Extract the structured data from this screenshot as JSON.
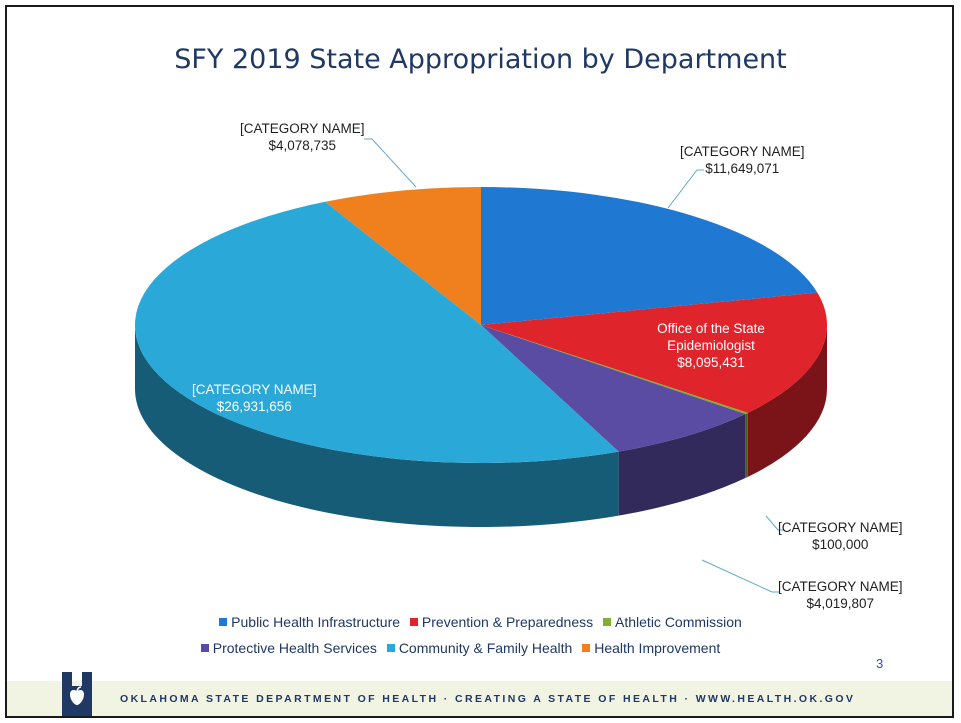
{
  "slide": {
    "page_number": "3",
    "footer_text": "OKLAHOMA STATE DEPARTMENT OF HEALTH · CREATING A STATE OF HEALTH · WWW.HEALTH.OK.GOV"
  },
  "chart_data": {
    "type": "pie",
    "title": "SFY 2019 State Appropriation by Department",
    "categories": [
      "Public Health Infrastructure",
      "Prevention & Preparedness",
      "Athletic Commission",
      "Protective Health Services",
      "Community & Family Health",
      "Health Improvement"
    ],
    "values": [
      11649071,
      8095431,
      100000,
      4019807,
      26931656,
      4078735
    ],
    "colors": [
      "#1f78d1",
      "#e0242b",
      "#7fb02f",
      "#5b4ca3",
      "#2aa8d8",
      "#f07f1e"
    ],
    "data_labels": [
      {
        "name": "[CATEGORY NAME]",
        "value": "$11,649,071"
      },
      {
        "name": "Office of the State Epidemiologist",
        "value": "$8,095,431"
      },
      {
        "name": "[CATEGORY NAME]",
        "value": "$100,000"
      },
      {
        "name": "[CATEGORY NAME]",
        "value": "$4,019,807"
      },
      {
        "name": "[CATEGORY NAME]",
        "value": "$26,931,656"
      },
      {
        "name": "[CATEGORY NAME]",
        "value": "$4,078,735"
      }
    ],
    "legend_position": "bottom",
    "style": "3d"
  }
}
